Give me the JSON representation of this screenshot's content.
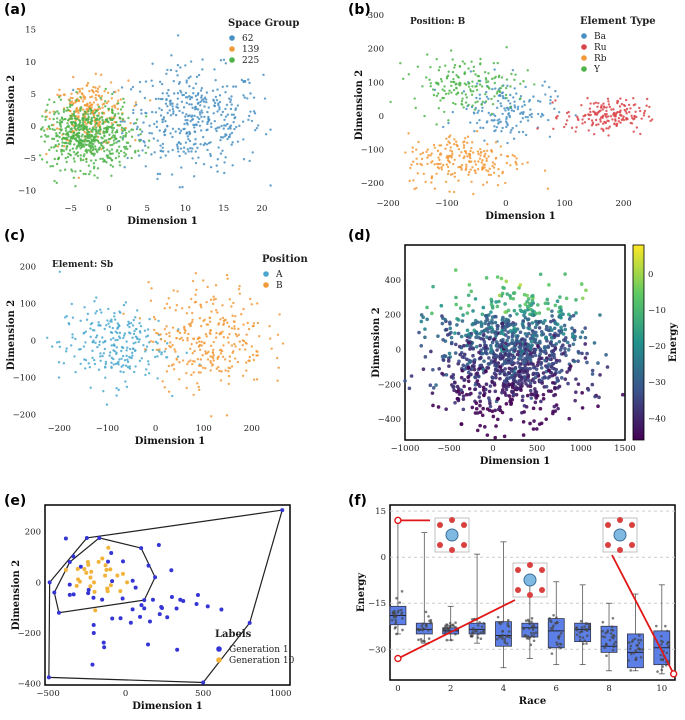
{
  "chart_data": [
    {
      "panel": "(a)",
      "type": "scatter",
      "xlabel": "Dimension 1",
      "ylabel": "Dimension 2",
      "xlim": [
        -9,
        23
      ],
      "ylim": [
        -11.5,
        16.5
      ],
      "xticks": [
        -5,
        0,
        5,
        10,
        15,
        20
      ],
      "yticks": [
        -10,
        -5,
        0,
        5,
        10,
        15
      ],
      "legend_title": "Space Group",
      "series": [
        {
          "name": "62",
          "color": "#4a90c2",
          "cx": 11,
          "cy": 1,
          "sx": 4.5,
          "sy": 4,
          "n": 420
        },
        {
          "name": "139",
          "color": "#f29a3a",
          "cx": -2.5,
          "cy": 2,
          "sx": 2.5,
          "sy": 2.5,
          "n": 260
        },
        {
          "name": "225",
          "color": "#4fb44a",
          "cx": -3,
          "cy": -1.5,
          "sx": 3,
          "sy": 2.5,
          "n": 620
        }
      ]
    },
    {
      "panel": "(b)",
      "type": "scatter",
      "xlabel": "Dimension 1",
      "ylabel": "Dimension 2",
      "xlim": [
        -200,
        250
      ],
      "ylim": [
        -235,
        300
      ],
      "xticks": [
        -200,
        -100,
        0,
        100,
        200
      ],
      "yticks": [
        -200,
        -100,
        0,
        100,
        200,
        300
      ],
      "annotation": "Position: B",
      "legend_title": "Element Type",
      "series": [
        {
          "name": "Ba",
          "color": "#4a90c2",
          "cx": 0,
          "cy": 20,
          "sx": 40,
          "sy": 45,
          "n": 160
        },
        {
          "name": "Ru",
          "color": "#d9464a",
          "cx": 170,
          "cy": 0,
          "sx": 35,
          "sy": 25,
          "n": 180
        },
        {
          "name": "Rb",
          "color": "#f29a3a",
          "cx": -70,
          "cy": -130,
          "sx": 50,
          "sy": 40,
          "n": 220
        },
        {
          "name": "Y",
          "color": "#4fb44a",
          "cx": -70,
          "cy": 95,
          "sx": 45,
          "sy": 40,
          "n": 170
        }
      ]
    },
    {
      "panel": "(c)",
      "type": "scatter",
      "xlabel": "Dimension 1",
      "ylabel": "Dimension 2",
      "xlim": [
        -240,
        300
      ],
      "ylim": [
        -215,
        245
      ],
      "xticks": [
        -200,
        -100,
        0,
        100,
        200
      ],
      "yticks": [
        -200,
        -100,
        0,
        100,
        200
      ],
      "annotation": "Element: Sb",
      "legend_title": "Position",
      "series": [
        {
          "name": "A",
          "color": "#4aa8cf",
          "cx": -90,
          "cy": -10,
          "sx": 55,
          "sy": 55,
          "n": 250
        },
        {
          "name": "B",
          "color": "#f29a3a",
          "cx": 110,
          "cy": 10,
          "sx": 60,
          "sy": 70,
          "n": 300
        }
      ]
    },
    {
      "panel": "(d)",
      "type": "scatter",
      "xlabel": "Dimension 1",
      "ylabel": "Dimension 2",
      "xlim": [
        -1000,
        1500
      ],
      "ylim": [
        -520,
        600
      ],
      "xticks": [
        -1000,
        -500,
        0,
        500,
        1000,
        1500
      ],
      "yticks": [
        -400,
        -200,
        0,
        200,
        400
      ],
      "colorbar_label": "Energy",
      "colorbar_range": [
        -46,
        8
      ],
      "colorbar_ticks": [
        0,
        -10,
        -20,
        -30,
        -40
      ],
      "n_points": 1100
    },
    {
      "panel": "(e)",
      "type": "scatter",
      "xlabel": "Dimension 1",
      "ylabel": "Dimension 2",
      "xlim": [
        -520,
        1060
      ],
      "ylim": [
        -405,
        305
      ],
      "xticks": [
        -500,
        0,
        500,
        1000
      ],
      "yticks": [
        -400,
        -200,
        0,
        200
      ],
      "legend_title": "Labels",
      "series": [
        {
          "name": "Generation 1",
          "color": "#3535d6",
          "n": 60
        },
        {
          "name": "Generation 10",
          "color": "#f2b33a",
          "n": 30
        }
      ],
      "hull_outer": [
        [
          -490,
          0
        ],
        [
          -250,
          175
        ],
        [
          1010,
          285
        ],
        [
          800,
          -160
        ],
        [
          500,
          -395
        ],
        [
          -495,
          -375
        ]
      ],
      "hull_inner": [
        [
          -460,
          -40
        ],
        [
          -360,
          80
        ],
        [
          -170,
          175
        ],
        [
          100,
          135
        ],
        [
          190,
          20
        ],
        [
          120,
          -70
        ],
        [
          -430,
          -120
        ]
      ]
    },
    {
      "panel": "(f)",
      "type": "box",
      "xlabel": "Race",
      "ylabel": "Energy",
      "xlim": [
        -0.3,
        10.5
      ],
      "ylim": [
        -40,
        17
      ],
      "xticks": [
        0,
        2,
        4,
        6,
        8,
        10
      ],
      "yticks": [
        15,
        0,
        -15,
        -30
      ],
      "boxes": [
        {
          "x": 0,
          "q1": -22,
          "med": -19,
          "q3": -16,
          "wlo": -25,
          "whi": 12
        },
        {
          "x": 1,
          "q1": -25,
          "med": -23.5,
          "q3": -21.5,
          "wlo": -28,
          "whi": 8
        },
        {
          "x": 2,
          "q1": -25,
          "med": -24,
          "q3": -23,
          "wlo": -27,
          "whi": -16
        },
        {
          "x": 3,
          "q1": -25,
          "med": -23.5,
          "q3": -21.5,
          "wlo": -28,
          "whi": 1
        },
        {
          "x": 4,
          "q1": -29,
          "med": -25.5,
          "q3": -21,
          "wlo": -36,
          "whi": 5
        },
        {
          "x": 5,
          "q1": -26,
          "med": -23,
          "q3": -21.5,
          "wlo": -33,
          "whi": -6
        },
        {
          "x": 6,
          "q1": -29.5,
          "med": -24,
          "q3": -20,
          "wlo": -35,
          "whi": -8
        },
        {
          "x": 7,
          "q1": -27.5,
          "med": -23.5,
          "q3": -21.5,
          "wlo": -35,
          "whi": -9
        },
        {
          "x": 8,
          "q1": -31,
          "med": -29,
          "q3": -22.5,
          "wlo": -37,
          "whi": -15
        },
        {
          "x": 9,
          "q1": -36,
          "med": -31,
          "q3": -25,
          "wlo": -37,
          "whi": -12
        },
        {
          "x": 10,
          "q1": -35,
          "med": -29.5,
          "q3": -24,
          "wlo": -38,
          "whi": -9
        }
      ]
    }
  ]
}
